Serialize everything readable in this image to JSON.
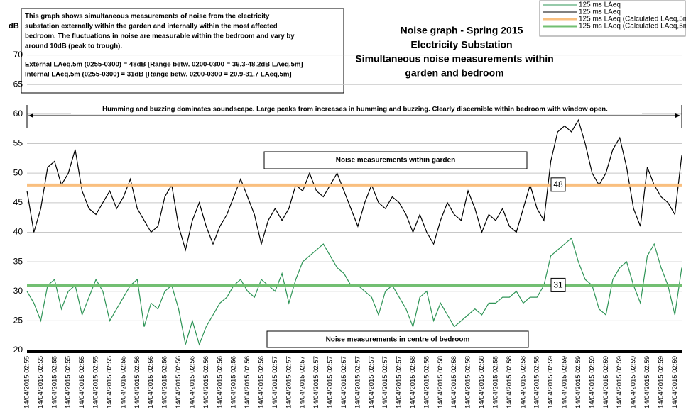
{
  "chart_data": {
    "type": "line",
    "title": [
      "Noise graph - Spring 2015",
      "Electricity Substation",
      "Simultaneous noise measurements within",
      "garden and bedroom"
    ],
    "y_label": "dB",
    "info_box": [
      "This graph shows simultaneous measurements of noise from the electricity",
      "substation externally within the garden and internally within the most affected",
      "bedroom. The fluctuations in noise are measurable within the bedroom and vary by",
      "around 10dB (peak to trough).",
      "External LAeq,5m (0255-0300) = 48dB [Range betw. 0200-0300 = 36.3-48.2dB LAeq,5m]",
      "Internal LAeq,5m (0255-0300) = 31dB [Range betw. 0200-0300 = 20.9-31.7 LAeq,5m]"
    ],
    "annotations": {
      "soundscape": "Humming and buzzing dominates soundscape. Large peaks from increases in humming and buzzing. Clearly discernible within bedroom with window open.",
      "garden": "Noise measurements within garden",
      "bedroom": "Noise measurements in centre of bedroom"
    },
    "categories": [
      "14/04/2015 02:55",
      null,
      "14/04/2015 02:55",
      null,
      "14/04/2015 02:55",
      null,
      "14/04/2015 02:55",
      null,
      "14/04/2015 02:55",
      null,
      "14/04/2015 02:55",
      null,
      "14/04/2015 02:55",
      null,
      "14/04/2015 02:55",
      null,
      "14/04/2015 02:56",
      null,
      "14/04/2015 02:56",
      null,
      "14/04/2015 02:56",
      null,
      "14/04/2015 02:56",
      null,
      "14/04/2015 02:56",
      null,
      "14/04/2015 02:56",
      null,
      "14/04/2015 02:56",
      null,
      "14/04/2015 02:56",
      null,
      "14/04/2015 02:56",
      null,
      "14/04/2015 02:56",
      null,
      "14/04/2015 02:57",
      null,
      "14/04/2015 02:57",
      null,
      "14/04/2015 02:57",
      null,
      "14/04/2015 02:57",
      null,
      "14/04/2015 02:57",
      null,
      "14/04/2015 02:57",
      null,
      "14/04/2015 02:57",
      null,
      "14/04/2015 02:57",
      null,
      "14/04/2015 02:57",
      null,
      "14/04/2015 02:57",
      null,
      "14/04/2015 02:58",
      null,
      "14/04/2015 02:58",
      null,
      "14/04/2015 02:58",
      null,
      "14/04/2015 02:58",
      null,
      "14/04/2015 02:58",
      null,
      "14/04/2015 02:58",
      null,
      "14/04/2015 02:58",
      null,
      "14/04/2015 02:58",
      null,
      "14/04/2015 02:58",
      null,
      "14/04/2015 02:58",
      null,
      "14/04/2015 02:59",
      null,
      "14/04/2015 02:59",
      null,
      "14/04/2015 02:59",
      null,
      "14/04/2015 02:59",
      null,
      "14/04/2015 02:59",
      null,
      "14/04/2015 02:59",
      null,
      "14/04/2015 02:59",
      null,
      "14/04/2015 02:59",
      null,
      "14/04/2015 02:59",
      null,
      "14/04/2015 02:59",
      null
    ],
    "series": [
      {
        "name": "125 ms LAeq",
        "color": "#2e9456",
        "values": [
          30,
          28,
          25,
          31,
          32,
          27,
          30,
          31,
          26,
          29,
          32,
          30,
          25,
          27,
          29,
          31,
          32,
          24,
          28,
          27,
          30,
          31,
          27,
          21,
          25,
          21,
          24,
          26,
          28,
          29,
          31,
          32,
          30,
          29,
          32,
          31,
          30,
          33,
          28,
          32,
          35,
          36,
          37,
          38,
          36,
          34,
          33,
          31,
          31,
          30,
          29,
          26,
          30,
          31,
          29,
          27,
          24,
          29,
          30,
          25,
          28,
          26,
          24,
          25,
          26,
          27,
          26,
          28,
          28,
          29,
          29,
          30,
          28,
          29,
          29,
          31,
          36,
          37,
          38,
          39,
          35,
          32,
          31,
          27,
          26,
          32,
          34,
          35,
          31,
          28,
          36,
          38,
          34,
          31,
          26,
          34
        ]
      },
      {
        "name": "125 ms LAeq",
        "color": "#000000",
        "values": [
          47,
          40,
          44,
          51,
          52,
          48,
          50,
          54,
          47,
          44,
          43,
          45,
          47,
          44,
          46,
          49,
          44,
          42,
          40,
          41,
          46,
          48,
          41,
          37,
          42,
          45,
          41,
          38,
          41,
          43,
          46,
          49,
          46,
          43,
          38,
          42,
          44,
          42,
          44,
          48,
          47,
          50,
          47,
          46,
          48,
          50,
          47,
          44,
          41,
          45,
          48,
          45,
          44,
          46,
          45,
          43,
          40,
          43,
          40,
          38,
          42,
          45,
          43,
          42,
          47,
          44,
          40,
          43,
          42,
          44,
          41,
          40,
          44,
          48,
          44,
          42,
          52,
          57,
          58,
          57,
          59,
          55,
          50,
          48,
          50,
          54,
          56,
          51,
          44,
          41,
          51,
          48,
          46,
          45,
          43,
          53
        ]
      }
    ],
    "reference_lines": [
      {
        "name": "125 ms LAeq (Calculated LAeq,5m",
        "color": "#f9bf7f",
        "value": 48
      },
      {
        "name": "125 ms LAeq (Calculated LAeq,5m",
        "color": "#72bf72",
        "value": 31
      }
    ],
    "ylim": [
      20,
      75
    ],
    "yticks": [
      20,
      25,
      30,
      35,
      40,
      45,
      50,
      55,
      60,
      65,
      70
    ],
    "grid": true
  }
}
